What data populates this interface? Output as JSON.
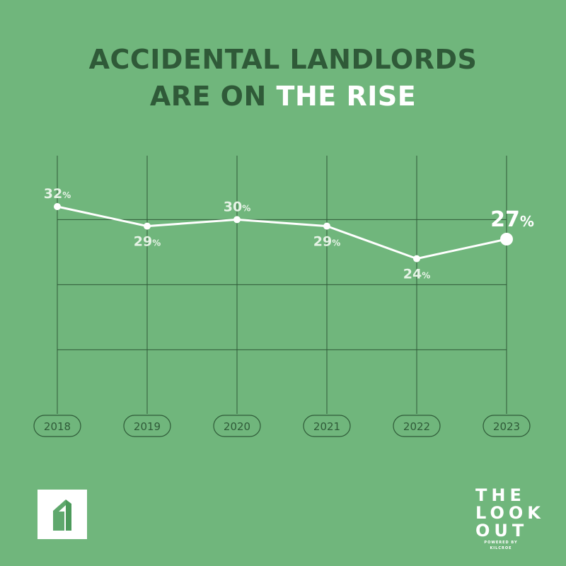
{
  "title": {
    "line1": "ACCIDENTAL LANDLORDS",
    "line2_prefix": "ARE ON",
    "line2_highlight": "THE RISE"
  },
  "chart_data": {
    "type": "line",
    "categories": [
      "2018",
      "2019",
      "2020",
      "2021",
      "2022",
      "2023"
    ],
    "values": [
      32,
      29,
      30,
      29,
      24,
      27
    ],
    "value_labels": [
      "32",
      "29",
      "30",
      "29",
      "24",
      "27"
    ],
    "unit_suffix": "%",
    "ylim": [
      10,
      34
    ],
    "grid": true,
    "highlight_last": true,
    "colors": {
      "background": "#70b67c",
      "line": "#ffffff",
      "grid": "#2f5a38",
      "labels": "#e6f3e6",
      "title_dark": "#2f5a38"
    }
  },
  "brand": {
    "line1": "THE",
    "line2": "LOOK",
    "line3": "OUT",
    "tagline": "POWERED BY KILCROE",
    "left_logo_icon": "house-arrow-logo-icon"
  }
}
